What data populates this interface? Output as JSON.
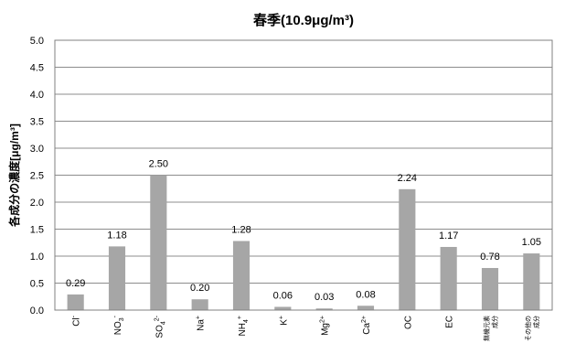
{
  "chart_data": {
    "type": "bar",
    "title": "春季(10.9μg/m³)",
    "ylabel": "各成分の濃度[μg/m³]",
    "xlabel": "",
    "ylim": [
      0,
      5
    ],
    "yticks": [
      "0.0",
      "0.5",
      "1.0",
      "1.5",
      "2.0",
      "2.5",
      "3.0",
      "3.5",
      "4.0",
      "4.5",
      "5.0"
    ],
    "grid": true,
    "bar_color": "#a6a6a6",
    "categories": [
      {
        "base": "Cl",
        "sup": "-"
      },
      {
        "base": "NO",
        "sub": "3",
        "sup": "-"
      },
      {
        "base": "SO",
        "sub": "4",
        "sup": "2-"
      },
      {
        "base": "Na",
        "sup": "+"
      },
      {
        "base": "NH",
        "sub": "4",
        "sup": "+"
      },
      {
        "base": "K",
        "sup": "+"
      },
      {
        "base": "Mg",
        "sup": "2+"
      },
      {
        "base": "Ca",
        "sup": "2+"
      },
      {
        "base": "OC"
      },
      {
        "base": "EC"
      },
      {
        "lines": [
          "無機元素",
          "成分"
        ]
      },
      {
        "lines": [
          "その他の",
          "成分"
        ]
      }
    ],
    "values": [
      0.29,
      1.18,
      2.5,
      0.2,
      1.28,
      0.06,
      0.03,
      0.08,
      2.24,
      1.17,
      0.78,
      1.05
    ],
    "value_labels": [
      "0.29",
      "1.18",
      "2.50",
      "0.20",
      "1.28",
      "0.06",
      "0.03",
      "0.08",
      "2.24",
      "1.17",
      "0.78",
      "1.05"
    ]
  }
}
